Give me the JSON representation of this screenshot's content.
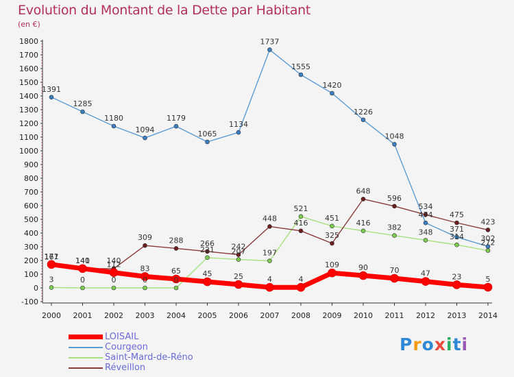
{
  "chart_data": {
    "type": "line",
    "title": "Evolution du Montant de la Dette par Habitant",
    "subtitle": "(en €)",
    "x": [
      "2000",
      "2001",
      "2002",
      "2003",
      "2004",
      "2005",
      "2006",
      "2007",
      "2008",
      "2009",
      "2010",
      "2011",
      "2012",
      "2013",
      "2014"
    ],
    "ylim": [
      -100,
      1800
    ],
    "yticks": [
      -100,
      0,
      100,
      200,
      300,
      400,
      500,
      600,
      700,
      800,
      900,
      1000,
      1100,
      1200,
      1300,
      1400,
      1500,
      1600,
      1700,
      1800
    ],
    "grid": false,
    "legend_position": "bottom-left",
    "series": [
      {
        "name": "Courgeon",
        "color": "#5b9bd5",
        "point_color": "#3a7fc2",
        "width": 1.4,
        "marker": 3,
        "values": [
          1391,
          1285,
          1180,
          1094,
          1179,
          1065,
          1134,
          1737,
          1555,
          1420,
          1226,
          1048,
          474,
          371,
          302
        ]
      },
      {
        "name": "Saint-Mard-de-Réno",
        "color": "#a8e07c",
        "point_color": "#7ccd4f",
        "width": 1.4,
        "marker": 3,
        "values": [
          3,
          0,
          0,
          0,
          0,
          221,
          207,
          197,
          521,
          451,
          416,
          382,
          348,
          314,
          272
        ]
      },
      {
        "name": "Réveillon",
        "color": "#8b3a3a",
        "point_color": "#6b1f1f",
        "width": 1.4,
        "marker": 3,
        "values": [
          167,
          140,
          140,
          309,
          288,
          266,
          242,
          448,
          416,
          325,
          648,
          596,
          534,
          475,
          423
        ]
      },
      {
        "name": "LOISAIL",
        "color": "#ff0000",
        "point_color": "#ff0000",
        "width": 7,
        "marker": 6,
        "values": [
          171,
          141,
          112,
          83,
          65,
          45,
          25,
          4,
          4,
          109,
          90,
          70,
          47,
          23,
          5
        ]
      }
    ]
  },
  "logo": {
    "text": "Proxiti",
    "colors": [
      "#2f88d6",
      "#f39c12",
      "#2f88d6",
      "#e74c3c",
      "#27ae60",
      "#2f88d6",
      "#9b59b6"
    ]
  }
}
